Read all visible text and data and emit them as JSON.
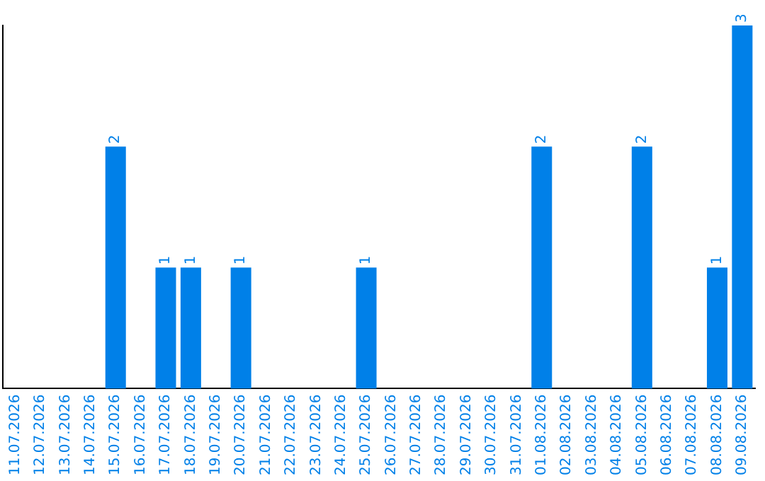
{
  "chart_data": {
    "type": "bar",
    "categories": [
      "11.07.2026",
      "12.07.2026",
      "13.07.2026",
      "14.07.2026",
      "15.07.2026",
      "16.07.2026",
      "17.07.2026",
      "18.07.2026",
      "19.07.2026",
      "20.07.2026",
      "21.07.2026",
      "22.07.2026",
      "23.07.2026",
      "24.07.2026",
      "25.07.2026",
      "26.07.2026",
      "27.07.2026",
      "28.07.2026",
      "29.07.2026",
      "30.07.2026",
      "31.07.2026",
      "01.08.2026",
      "02.08.2026",
      "03.08.2026",
      "04.08.2026",
      "05.08.2026",
      "06.08.2026",
      "07.08.2026",
      "08.08.2026",
      "09.08.2026"
    ],
    "values": [
      0,
      0,
      0,
      0,
      2,
      0,
      1,
      1,
      0,
      1,
      0,
      0,
      0,
      0,
      1,
      0,
      0,
      0,
      0,
      0,
      0,
      2,
      0,
      0,
      0,
      2,
      0,
      0,
      1,
      3
    ],
    "value_labels": [
      null,
      null,
      null,
      null,
      "2",
      null,
      "1",
      "1",
      null,
      "1",
      null,
      null,
      null,
      null,
      "1",
      null,
      null,
      null,
      null,
      null,
      null,
      "2",
      null,
      null,
      null,
      "2",
      null,
      null,
      "1",
      "3"
    ],
    "color": "#0080e8",
    "grid": false,
    "legend": false,
    "tick_labels": "x"
  }
}
